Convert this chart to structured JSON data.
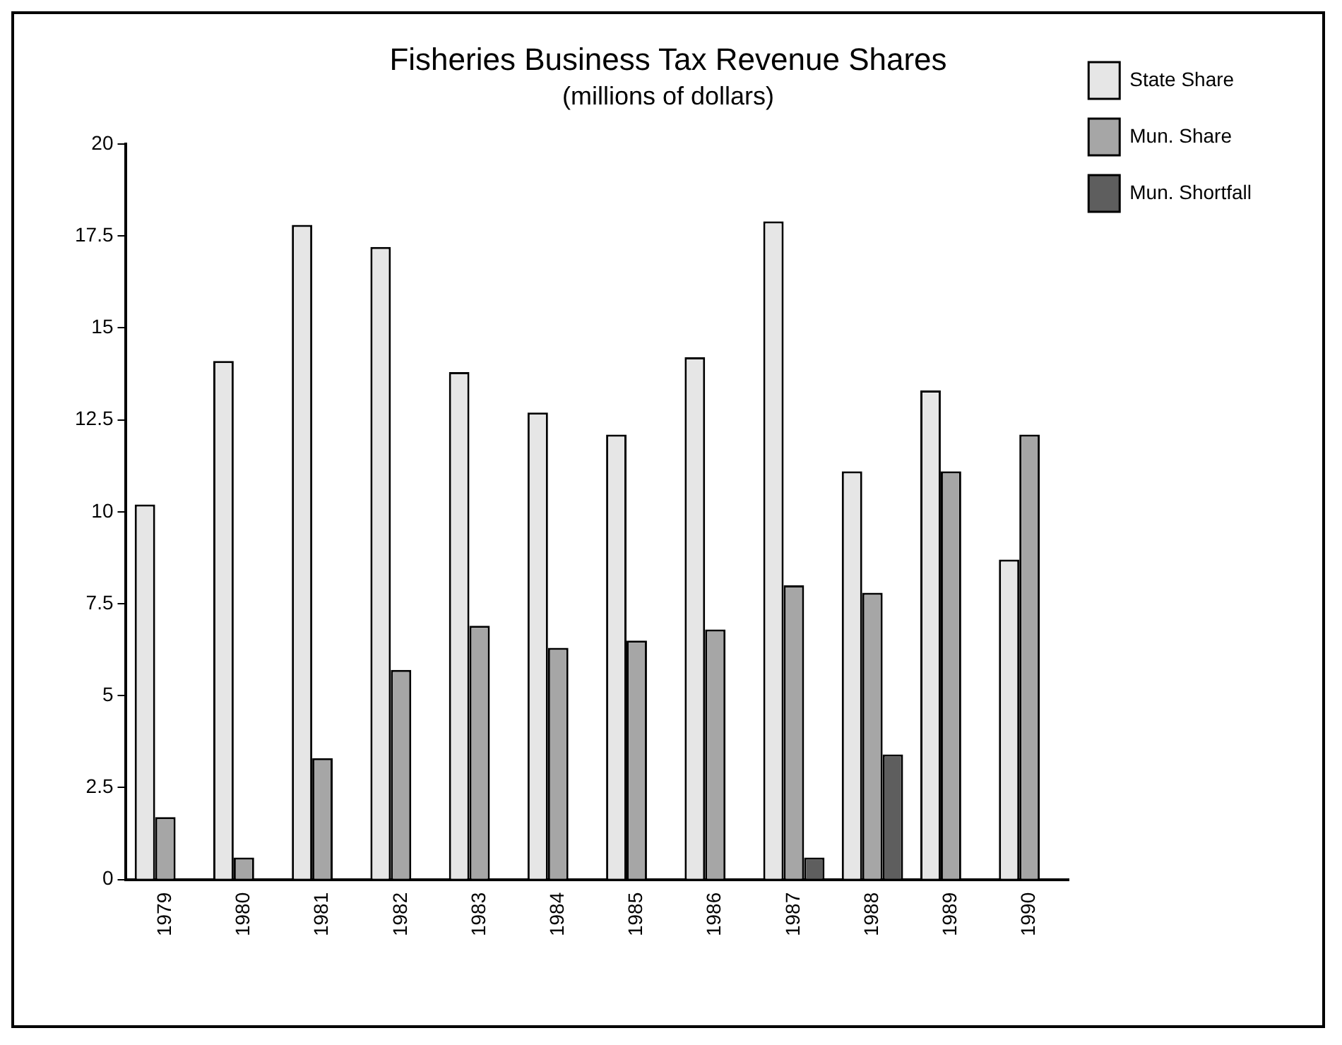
{
  "chart_data": {
    "type": "bar",
    "title": "Fisheries Business Tax Revenue Shares",
    "subtitle": "(millions of dollars)",
    "categories": [
      "1979",
      "1980",
      "1981",
      "1982",
      "1983",
      "1984",
      "1985",
      "1986",
      "1987",
      "1988",
      "1989",
      "1990"
    ],
    "series": [
      {
        "name": "State Share",
        "color": "#e6e6e6",
        "values": [
          10.2,
          14.1,
          17.8,
          17.2,
          13.8,
          12.7,
          12.1,
          14.2,
          17.9,
          11.1,
          13.3,
          8.7
        ]
      },
      {
        "name": "Mun. Share",
        "color": "#a6a6a6",
        "values": [
          1.7,
          0.6,
          3.3,
          5.7,
          6.9,
          6.3,
          6.5,
          6.8,
          8.0,
          7.8,
          11.1,
          12.1
        ]
      },
      {
        "name": "Mun. Shortfall",
        "color": "#5e5e5e",
        "values": [
          null,
          null,
          null,
          null,
          null,
          null,
          null,
          null,
          0.6,
          3.4,
          null,
          null
        ]
      }
    ],
    "ylim": [
      0,
      20
    ],
    "yticks": [
      0,
      2.5,
      5,
      7.5,
      10,
      12.5,
      15,
      17.5,
      20
    ],
    "grid": false,
    "legend": "top right"
  }
}
